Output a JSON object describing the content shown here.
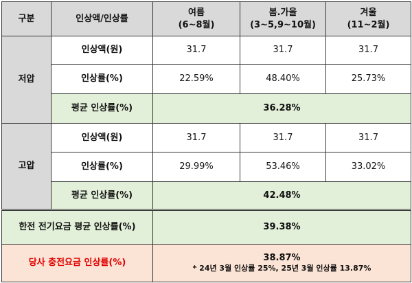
{
  "header": {
    "col_group": "구분",
    "col_item": "인상액/인상률",
    "summer": "여름",
    "summer_months": "(6~8월)",
    "spring_fall": "봄.가을",
    "spring_fall_months": "(3~5,9~10월)",
    "winter": "겨울",
    "winter_months": "(11~2월)"
  },
  "low_voltage": {
    "label": "저압",
    "amount_label": "인상액(원)",
    "amounts": [
      "31.7",
      "31.7",
      "31.7"
    ],
    "rate_label": "인상률(%)",
    "rates": [
      "22.59%",
      "48.40%",
      "25.73%"
    ],
    "avg_label": "평균 인상률(%)",
    "avg_value": "36.28%"
  },
  "high_voltage": {
    "label": "고압",
    "amount_label": "인상액(원)",
    "amounts": [
      "31.7",
      "31.7",
      "31.7"
    ],
    "rate_label": "인상률(%)",
    "rates": [
      "29.99%",
      "53.46%",
      "33.02%"
    ],
    "avg_label": "평균 인상률(%)",
    "avg_value": "42.48%"
  },
  "kepco": {
    "label": "한전 전기요금 평균 인상률(%)",
    "value": "39.38%"
  },
  "ours": {
    "label": "당사 충전요금 인상률(%)",
    "value": "38.87%",
    "note": "* 24년 3월 인상률 25%, 25년 3월 인상률 13.87%"
  },
  "colors": {
    "header_bg": "#d9d9d9",
    "avg_bg": "#e2efd9",
    "ours_bg": "#fbe4d5",
    "ours_label": "#e00000"
  }
}
